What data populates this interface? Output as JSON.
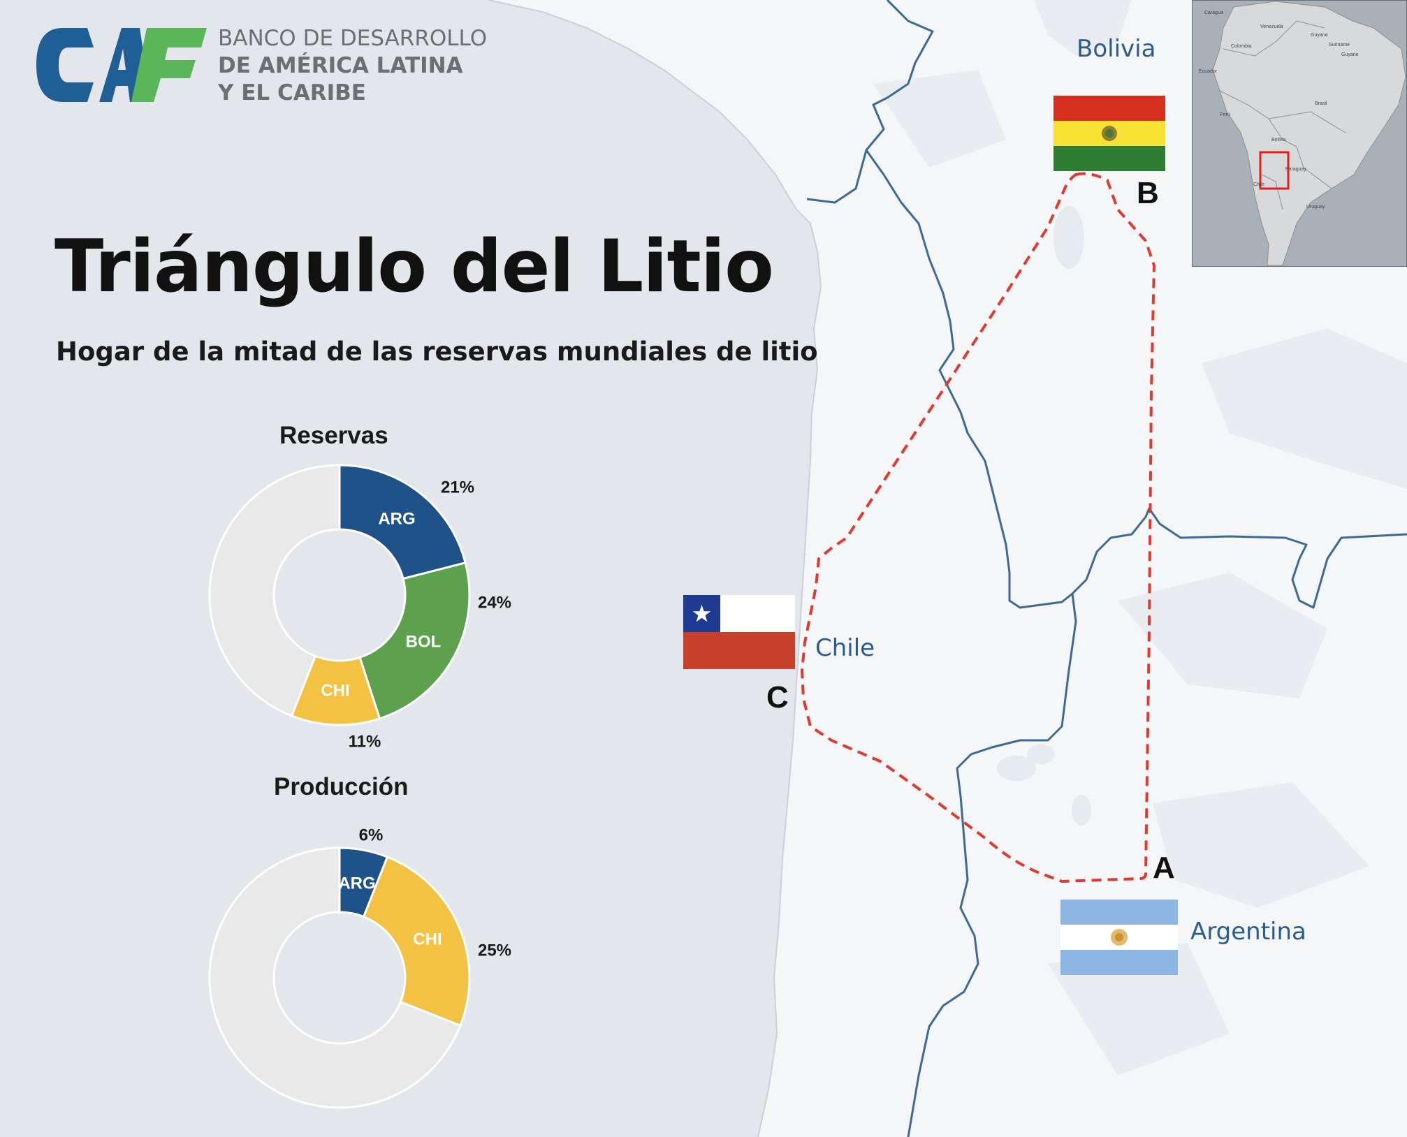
{
  "logo": {
    "wordmark": "CAF",
    "line1": "BANCO DE DESARROLLO",
    "line2": "DE AMÉRICA LATINA",
    "line3": "Y EL CARIBE",
    "colors": {
      "blue": "#1f5f96",
      "green": "#5bb65a"
    }
  },
  "title": "Triángulo del Litio",
  "subtitle": "Hogar de la mitad de las reservas mundiales de litio",
  "charts": {
    "reserves_title": "Reservas",
    "production_title": "Producción"
  },
  "chart_data": [
    {
      "type": "pie",
      "title": "Reservas",
      "donut": true,
      "categories": [
        "ARG",
        "BOL",
        "CHI",
        ""
      ],
      "values": [
        21,
        24,
        11,
        44
      ],
      "value_labels": [
        "21%",
        "24%",
        "11%",
        ""
      ],
      "colors": [
        "#1f5289",
        "#5da14f",
        "#f4c242",
        "#e9e9ea"
      ]
    },
    {
      "type": "pie",
      "title": "Producción",
      "donut": true,
      "categories": [
        "ARG",
        "CHI",
        ""
      ],
      "values": [
        6,
        25,
        69
      ],
      "value_labels": [
        "6%",
        "25%",
        ""
      ],
      "colors": [
        "#1f5289",
        "#f4c242",
        "#e9e9ea"
      ]
    }
  ],
  "map": {
    "countries": {
      "bolivia": "Bolivia",
      "chile": "Chile",
      "argentina": "Argentina"
    },
    "vertices": {
      "a": "A",
      "b": "B",
      "c": "C"
    },
    "colors": {
      "ocean": "#e3e7ec",
      "land": "#f4f6f8",
      "border": "#3d6a94",
      "triangle": "#e03a30"
    },
    "flags": [
      "bolivia-flag",
      "chile-flag",
      "argentina-flag"
    ]
  },
  "inset": {
    "labels": [
      "Caragua",
      "Venezuela",
      "Guyana",
      "Colombia",
      "Suriname",
      "Guyane",
      "Ecuador",
      "Perú",
      "Brasil",
      "Bolivia",
      "Paraguay",
      "Chile",
      "Uruguay"
    ],
    "highlight_color": "#e0201c"
  }
}
